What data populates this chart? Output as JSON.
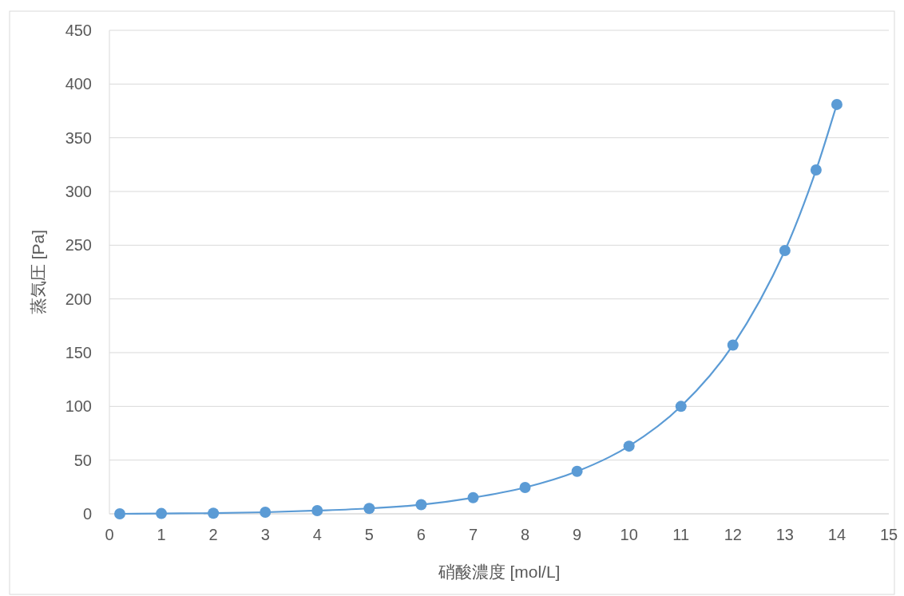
{
  "chart_data": {
    "type": "line",
    "xlabel": "硝酸濃度 [mol/L]",
    "ylabel": "蒸気圧 [Pa]",
    "x": [
      0.2,
      1,
      2,
      3,
      4,
      5,
      6,
      7,
      8,
      9,
      10,
      11,
      12,
      13,
      13.6,
      14
    ],
    "series": [
      {
        "color": "#5b9bd5",
        "values": [
          0,
          0.3,
          0.6,
          1.5,
          3,
          5,
          8.5,
          15,
          24.5,
          39.5,
          63,
          100,
          157,
          245,
          320,
          381
        ]
      }
    ],
    "xlim": [
      0,
      15
    ],
    "xticks": [
      0,
      1,
      2,
      3,
      4,
      5,
      6,
      7,
      8,
      9,
      10,
      11,
      12,
      13,
      14,
      15
    ],
    "ylim": [
      0,
      450
    ],
    "yticks": [
      0,
      50,
      100,
      150,
      200,
      250,
      300,
      350,
      400,
      450
    ],
    "grid": "y",
    "marker": "circle"
  }
}
